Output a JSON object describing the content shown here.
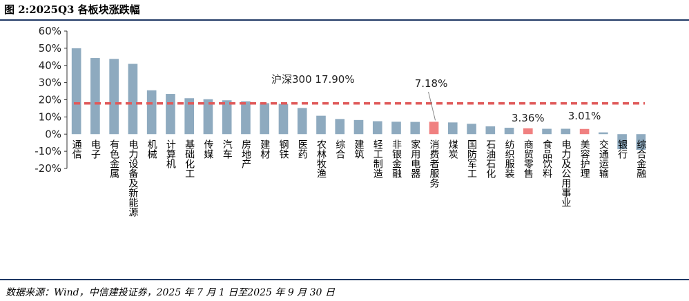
{
  "figure": {
    "title": "图 2:2025Q3 各板块涨跌幅",
    "source": "数据来源：Wind，中信建投证券，2025 年 7 月 1 日至2025 年 9 月 30 日"
  },
  "chart_data": {
    "type": "bar",
    "title": "",
    "xlabel": "",
    "ylabel": "",
    "ylim": [
      -0.2,
      0.6
    ],
    "yticks": [
      -0.2,
      -0.1,
      0,
      0.1,
      0.2,
      0.3,
      0.4,
      0.5,
      0.6
    ],
    "ytick_labels": [
      "-20%",
      "-10%",
      "0%",
      "10%",
      "20%",
      "30%",
      "40%",
      "50%",
      "60%"
    ],
    "grid": false,
    "categories": [
      "通信",
      "电子",
      "有色金属",
      "电力设备及新能源",
      "机械",
      "计算机",
      "基础化工",
      "传媒",
      "汽车",
      "房地产",
      "建材",
      "钢铁",
      "医药",
      "农林牧渔",
      "综合",
      "建筑",
      "轻工制造",
      "非银金融",
      "家用电器",
      "消费者服务",
      "煤炭",
      "国防军工",
      "石油石化",
      "纺织服装",
      "商贸零售",
      "食品饮料",
      "电力及公用事业",
      "美容护理",
      "交通运输",
      "银行",
      "综合金融"
    ],
    "values": [
      0.5,
      0.443,
      0.438,
      0.409,
      0.255,
      0.234,
      0.209,
      0.203,
      0.197,
      0.191,
      0.18,
      0.176,
      0.152,
      0.107,
      0.088,
      0.082,
      0.075,
      0.072,
      0.071,
      0.0718,
      0.068,
      0.06,
      0.045,
      0.037,
      0.0336,
      0.031,
      0.0312,
      0.0301,
      0.01,
      -0.088,
      -0.092
    ],
    "highlighted": [
      "消费者服务",
      "商贸零售",
      "美容护理"
    ],
    "bar_color": "#8eaabf",
    "highlight_color": "#f08080",
    "reference_line": {
      "label": "沪深300 17.90%",
      "value": 0.179,
      "color": "#e05a5a"
    },
    "annotations": [
      {
        "category": "消费者服务",
        "text": "7.18%"
      },
      {
        "category": "商贸零售",
        "text": "3.36%"
      },
      {
        "category": "美容护理",
        "text": "3.01%"
      }
    ]
  }
}
